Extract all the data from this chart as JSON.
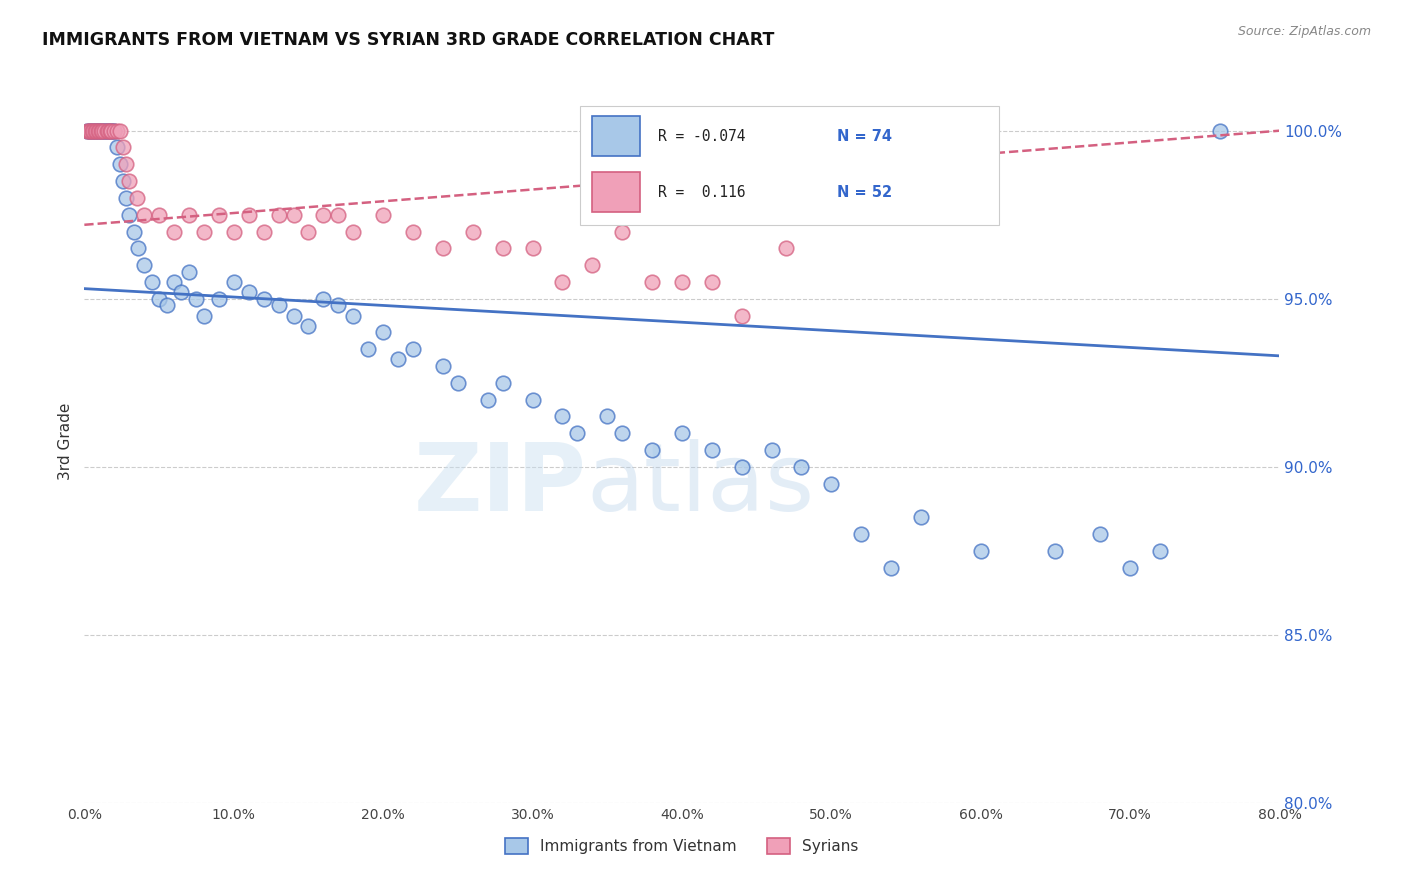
{
  "title": "IMMIGRANTS FROM VIETNAM VS SYRIAN 3RD GRADE CORRELATION CHART",
  "source": "Source: ZipAtlas.com",
  "ylabel": "3rd Grade",
  "x_min": 0.0,
  "x_max": 80.0,
  "y_min": 80.0,
  "y_max": 101.5,
  "y_ticks": [
    80.0,
    85.0,
    90.0,
    95.0,
    100.0
  ],
  "x_ticks": [
    0.0,
    10.0,
    20.0,
    30.0,
    40.0,
    50.0,
    60.0,
    70.0,
    80.0
  ],
  "legend_viet": "Immigrants from Vietnam",
  "legend_syr": "Syrians",
  "R_viet": -0.074,
  "N_viet": 74,
  "R_syr": 0.116,
  "N_syr": 52,
  "color_viet": "#a8c8e8",
  "color_syr": "#f0a0b8",
  "color_viet_line": "#4472c4",
  "color_syr_line": "#d46080",
  "background_color": "#ffffff",
  "watermark_zip": "ZIP",
  "watermark_atlas": "atlas",
  "viet_x": [
    0.2,
    0.3,
    0.4,
    0.5,
    0.6,
    0.7,
    0.8,
    0.9,
    1.0,
    1.1,
    1.2,
    1.3,
    1.4,
    1.5,
    1.6,
    1.7,
    1.8,
    1.9,
    2.0,
    2.2,
    2.4,
    2.6,
    2.8,
    3.0,
    3.3,
    3.6,
    4.0,
    4.5,
    5.0,
    5.5,
    6.0,
    6.5,
    7.0,
    7.5,
    8.0,
    9.0,
    10.0,
    11.0,
    12.0,
    13.0,
    14.0,
    15.0,
    16.0,
    17.0,
    18.0,
    19.0,
    20.0,
    21.0,
    22.0,
    24.0,
    25.0,
    27.0,
    28.0,
    30.0,
    32.0,
    33.0,
    35.0,
    36.0,
    38.0,
    40.0,
    42.0,
    44.0,
    46.0,
    48.0,
    50.0,
    52.0,
    54.0,
    56.0,
    60.0,
    65.0,
    68.0,
    70.0,
    72.0,
    76.0
  ],
  "viet_y": [
    100.0,
    100.0,
    100.0,
    100.0,
    100.0,
    100.0,
    100.0,
    100.0,
    100.0,
    100.0,
    100.0,
    100.0,
    100.0,
    100.0,
    100.0,
    100.0,
    100.0,
    100.0,
    100.0,
    99.5,
    99.0,
    98.5,
    98.0,
    97.5,
    97.0,
    96.5,
    96.0,
    95.5,
    95.0,
    94.8,
    95.5,
    95.2,
    95.8,
    95.0,
    94.5,
    95.0,
    95.5,
    95.2,
    95.0,
    94.8,
    94.5,
    94.2,
    95.0,
    94.8,
    94.5,
    93.5,
    94.0,
    93.2,
    93.5,
    93.0,
    92.5,
    92.0,
    92.5,
    92.0,
    91.5,
    91.0,
    91.5,
    91.0,
    90.5,
    91.0,
    90.5,
    90.0,
    90.5,
    90.0,
    89.5,
    88.0,
    87.0,
    88.5,
    87.5,
    87.5,
    88.0,
    87.0,
    87.5,
    100.0
  ],
  "syr_x": [
    0.2,
    0.3,
    0.4,
    0.5,
    0.6,
    0.7,
    0.8,
    0.9,
    1.0,
    1.1,
    1.2,
    1.3,
    1.5,
    1.6,
    1.7,
    1.8,
    2.0,
    2.2,
    2.4,
    2.6,
    2.8,
    3.0,
    3.5,
    4.0,
    5.0,
    6.0,
    7.0,
    8.0,
    9.0,
    10.0,
    11.0,
    12.0,
    13.0,
    14.0,
    15.0,
    16.0,
    17.0,
    18.0,
    20.0,
    22.0,
    24.0,
    26.0,
    28.0,
    30.0,
    32.0,
    34.0,
    36.0,
    38.0,
    40.0,
    42.0,
    44.0,
    47.0
  ],
  "syr_y": [
    100.0,
    100.0,
    100.0,
    100.0,
    100.0,
    100.0,
    100.0,
    100.0,
    100.0,
    100.0,
    100.0,
    100.0,
    100.0,
    100.0,
    100.0,
    100.0,
    100.0,
    100.0,
    100.0,
    99.5,
    99.0,
    98.5,
    98.0,
    97.5,
    97.5,
    97.0,
    97.5,
    97.0,
    97.5,
    97.0,
    97.5,
    97.0,
    97.5,
    97.5,
    97.0,
    97.5,
    97.5,
    97.0,
    97.5,
    97.0,
    96.5,
    97.0,
    96.5,
    96.5,
    95.5,
    96.0,
    97.0,
    95.5,
    95.5,
    95.5,
    94.5,
    96.5
  ],
  "viet_line_x0": 0.0,
  "viet_line_y0": 95.3,
  "viet_line_x1": 80.0,
  "viet_line_y1": 93.3,
  "syr_line_x0": 0.0,
  "syr_line_y0": 97.2,
  "syr_line_x1": 80.0,
  "syr_line_y1": 100.0
}
